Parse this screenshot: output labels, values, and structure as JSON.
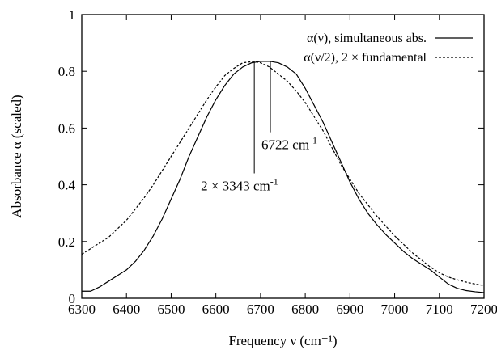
{
  "chart_data": {
    "type": "line",
    "title": "",
    "xlabel": "Frequency ν (cm⁻¹)",
    "ylabel": "Absorbance α (scaled)",
    "xlim": [
      6300,
      7200
    ],
    "ylim": [
      0,
      1
    ],
    "x_ticks": [
      6300,
      6400,
      6500,
      6600,
      6700,
      6800,
      6900,
      7000,
      7100,
      7200
    ],
    "y_ticks": [
      0,
      0.2,
      0.4,
      0.6,
      0.8,
      1
    ],
    "x_tick_labels": [
      "6300",
      "6400",
      "6500",
      "6600",
      "6700",
      "6800",
      "6900",
      "7000",
      "7100",
      "7200"
    ],
    "y_tick_labels": [
      "0",
      "0.2",
      "0.4",
      "0.6",
      "0.8",
      "1"
    ],
    "grid": false,
    "legend_position": "top-right",
    "series": [
      {
        "name": "α(ν), simultaneous abs.",
        "style": "solid",
        "color": "#000000",
        "x": [
          6300,
          6320,
          6340,
          6360,
          6380,
          6400,
          6420,
          6440,
          6460,
          6480,
          6500,
          6520,
          6540,
          6560,
          6580,
          6600,
          6620,
          6640,
          6660,
          6680,
          6700,
          6722,
          6740,
          6760,
          6780,
          6800,
          6820,
          6840,
          6860,
          6880,
          6900,
          6920,
          6940,
          6960,
          6980,
          7000,
          7020,
          7040,
          7060,
          7080,
          7100,
          7120,
          7140,
          7160,
          7180,
          7200
        ],
        "y": [
          0.025,
          0.025,
          0.04,
          0.06,
          0.08,
          0.1,
          0.13,
          0.17,
          0.22,
          0.28,
          0.35,
          0.42,
          0.5,
          0.57,
          0.64,
          0.7,
          0.75,
          0.79,
          0.815,
          0.83,
          0.835,
          0.835,
          0.83,
          0.815,
          0.79,
          0.74,
          0.68,
          0.62,
          0.55,
          0.48,
          0.41,
          0.35,
          0.3,
          0.26,
          0.225,
          0.195,
          0.165,
          0.14,
          0.12,
          0.1,
          0.075,
          0.05,
          0.035,
          0.027,
          0.023,
          0.02
        ]
      },
      {
        "name": "α(ν/2), 2 × fundamental",
        "style": "dashed",
        "color": "#000000",
        "x": [
          6300,
          6320,
          6340,
          6360,
          6380,
          6400,
          6420,
          6440,
          6460,
          6480,
          6500,
          6520,
          6540,
          6560,
          6580,
          6600,
          6620,
          6640,
          6660,
          6686,
          6700,
          6720,
          6740,
          6760,
          6780,
          6800,
          6820,
          6840,
          6860,
          6880,
          6900,
          6920,
          6940,
          6960,
          6980,
          7000,
          7020,
          7040,
          7060,
          7080,
          7100,
          7120,
          7140,
          7160,
          7180,
          7200
        ],
        "y": [
          0.155,
          0.175,
          0.195,
          0.215,
          0.245,
          0.275,
          0.315,
          0.355,
          0.4,
          0.45,
          0.5,
          0.55,
          0.6,
          0.65,
          0.7,
          0.745,
          0.785,
          0.81,
          0.83,
          0.835,
          0.83,
          0.815,
          0.79,
          0.765,
          0.73,
          0.69,
          0.64,
          0.59,
          0.53,
          0.47,
          0.42,
          0.37,
          0.33,
          0.29,
          0.255,
          0.22,
          0.19,
          0.16,
          0.135,
          0.11,
          0.09,
          0.075,
          0.065,
          0.057,
          0.05,
          0.045
        ]
      }
    ],
    "annotations": [
      {
        "text": "6722 cm",
        "sup": "-1",
        "x": 6722,
        "y_top": 0.835,
        "y_bottom": 0.585
      },
      {
        "text": "2 × 3343 cm",
        "sup": "-1",
        "x": 6686,
        "y_top": 0.835,
        "y_bottom": 0.44
      }
    ]
  }
}
